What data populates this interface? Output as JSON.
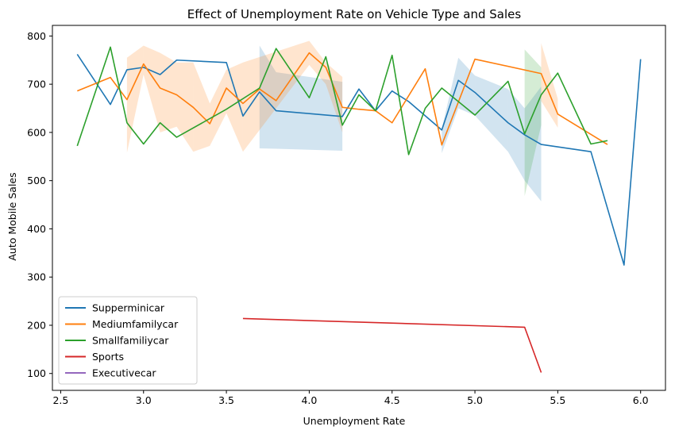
{
  "chart_data": {
    "type": "line",
    "title": "Effect of Unemployment Rate on Vehicle Type and Sales",
    "xlabel": "Unemployment Rate",
    "ylabel": "Auto Mobile Sales",
    "xlim": [
      2.45,
      6.15
    ],
    "ylim": [
      65,
      822
    ],
    "xticks": [
      2.5,
      3.0,
      3.5,
      4.0,
      4.5,
      5.0,
      5.5,
      6.0
    ],
    "xtick_labels": [
      "2.5",
      "3.0",
      "3.5",
      "4.0",
      "4.5",
      "5.0",
      "5.5",
      "6.0"
    ],
    "yticks": [
      100,
      200,
      300,
      400,
      500,
      600,
      700,
      800
    ],
    "ytick_labels": [
      "100",
      "200",
      "300",
      "400",
      "500",
      "600",
      "700",
      "800"
    ],
    "grid": false,
    "legend_position": "lower-left",
    "series": [
      {
        "name": "Supperminicar",
        "color": "#1f77b4",
        "points": [
          [
            2.6,
            762
          ],
          [
            2.8,
            658
          ],
          [
            2.9,
            730
          ],
          [
            3.0,
            735
          ],
          [
            3.1,
            720
          ],
          [
            3.2,
            750
          ],
          [
            3.5,
            745
          ],
          [
            3.6,
            634
          ],
          [
            3.7,
            684
          ],
          [
            3.8,
            645
          ],
          [
            4.2,
            633
          ],
          [
            4.3,
            690
          ],
          [
            4.4,
            645
          ],
          [
            4.5,
            686
          ],
          [
            4.6,
            664
          ],
          [
            4.8,
            605
          ],
          [
            4.9,
            708
          ],
          [
            5.0,
            683
          ],
          [
            5.2,
            620
          ],
          [
            5.3,
            595
          ],
          [
            5.4,
            575
          ],
          [
            5.7,
            560
          ],
          [
            5.9,
            325
          ],
          [
            6.0,
            752
          ]
        ],
        "band": [
          [
            4.8,
            557,
            608
          ],
          [
            4.9,
            650,
            755
          ],
          [
            5.0,
            635,
            718
          ],
          [
            5.2,
            560,
            690
          ],
          [
            5.3,
            500,
            650
          ],
          [
            5.4,
            457,
            695
          ],
          [
            3.7,
            567,
            780
          ],
          [
            3.8,
            566,
            725
          ],
          [
            4.2,
            562,
            705
          ]
        ]
      },
      {
        "name": "Mediumfamilycar",
        "color": "#ff7f0e",
        "points": [
          [
            2.6,
            686
          ],
          [
            2.8,
            714
          ],
          [
            2.9,
            668
          ],
          [
            3.0,
            742
          ],
          [
            3.1,
            692
          ],
          [
            3.2,
            678
          ],
          [
            3.3,
            652
          ],
          [
            3.4,
            618
          ],
          [
            3.5,
            692
          ],
          [
            3.6,
            660
          ],
          [
            3.7,
            690
          ],
          [
            3.8,
            666
          ],
          [
            4.0,
            765
          ],
          [
            4.1,
            735
          ],
          [
            4.2,
            652
          ],
          [
            4.3,
            648
          ],
          [
            4.4,
            645
          ],
          [
            4.5,
            620
          ],
          [
            4.7,
            732
          ],
          [
            4.8,
            574
          ],
          [
            5.0,
            752
          ],
          [
            5.4,
            722
          ],
          [
            5.5,
            638
          ],
          [
            5.8,
            575
          ]
        ],
        "band": [
          [
            2.9,
            558,
            755
          ],
          [
            3.0,
            720,
            780
          ],
          [
            3.1,
            600,
            765
          ],
          [
            3.2,
            612,
            745
          ],
          [
            3.3,
            560,
            745
          ],
          [
            3.4,
            572,
            660
          ],
          [
            3.5,
            640,
            730
          ],
          [
            3.6,
            560,
            745
          ],
          [
            4.0,
            740,
            790
          ],
          [
            4.1,
            700,
            745
          ],
          [
            4.2,
            600,
            715
          ],
          [
            5.4,
            665,
            785
          ],
          [
            5.5,
            610,
            670
          ]
        ]
      },
      {
        "name": "Smallfamiliycar",
        "color": "#2ca02c",
        "points": [
          [
            2.6,
            572
          ],
          [
            2.8,
            777
          ],
          [
            2.9,
            620
          ],
          [
            3.0,
            576
          ],
          [
            3.1,
            620
          ],
          [
            3.2,
            590
          ],
          [
            3.5,
            648
          ],
          [
            3.7,
            692
          ],
          [
            3.8,
            774
          ],
          [
            4.0,
            672
          ],
          [
            4.1,
            757
          ],
          [
            4.2,
            615
          ],
          [
            4.3,
            678
          ],
          [
            4.4,
            645
          ],
          [
            4.5,
            760
          ],
          [
            4.6,
            554
          ],
          [
            4.7,
            650
          ],
          [
            4.8,
            692
          ],
          [
            5.0,
            636
          ],
          [
            5.2,
            706
          ],
          [
            5.3,
            597
          ],
          [
            5.4,
            678
          ],
          [
            5.5,
            723
          ],
          [
            5.7,
            576
          ],
          [
            5.8,
            583
          ]
        ],
        "band": [
          [
            5.3,
            468,
            772
          ],
          [
            5.4,
            615,
            735
          ]
        ]
      },
      {
        "name": "Sports",
        "color": "#d62728",
        "points": [
          [
            3.6,
            214
          ],
          [
            5.3,
            196
          ],
          [
            5.4,
            102
          ]
        ],
        "band": []
      },
      {
        "name": "Executivecar",
        "color": "#9467bd",
        "points": [],
        "band": []
      }
    ]
  }
}
